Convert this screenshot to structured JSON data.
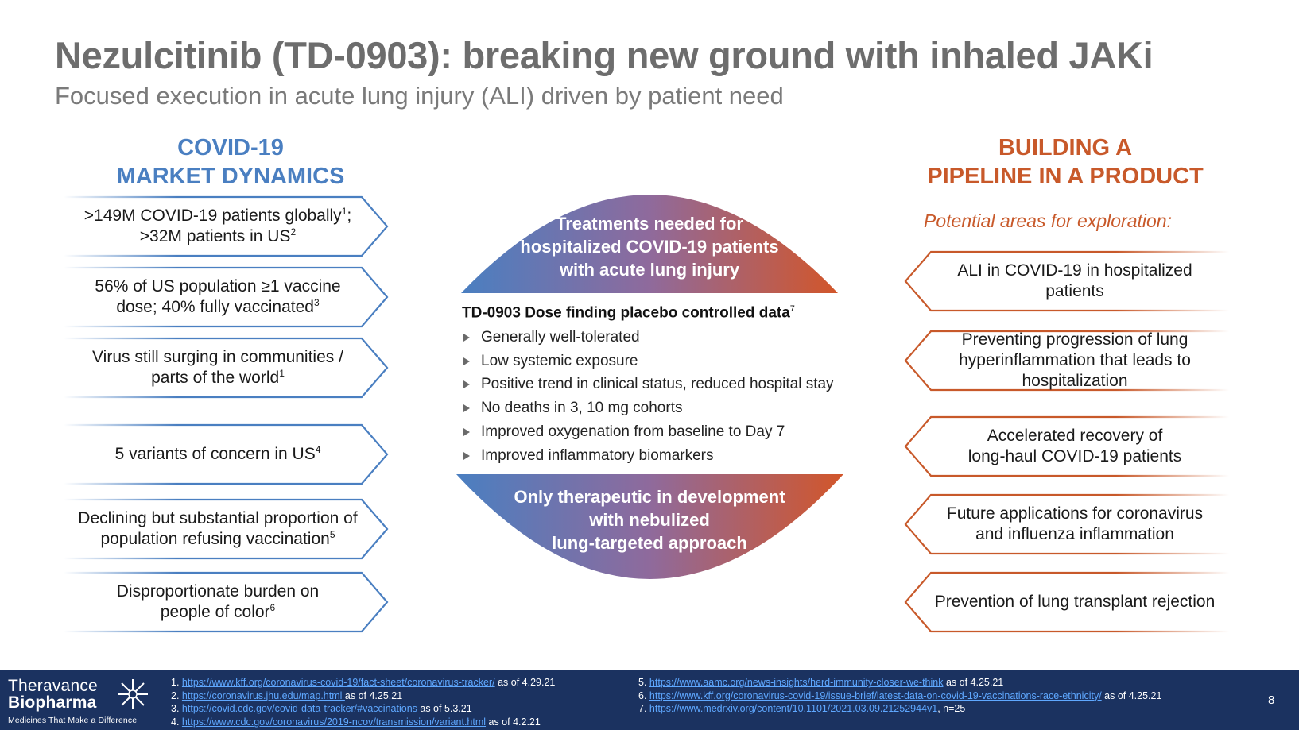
{
  "header": {
    "title": "Nezulcitinib (TD-0903): breaking new ground with inhaled JAKi",
    "subtitle": "Focused execution in acute lung injury (ALI) driven by patient need"
  },
  "left": {
    "heading_line1": "COVID-19",
    "heading_line2": "MARKET DYNAMICS",
    "color": "#4a7fc1",
    "items": [
      {
        "l1": ">149M COVID-19 patients globally",
        "s1": "1",
        "l1b": ";",
        "l2": ">32M patients in US",
        "s2": "2"
      },
      {
        "l1": "56% of US population ≥1 vaccine",
        "l2": "dose; 40% fully vaccinated",
        "s2": "3"
      },
      {
        "l1": "Virus still surging in communities /",
        "l2": "parts of the world",
        "s2": "1"
      },
      {
        "l1": "5 variants of concern in US",
        "s1": "4"
      },
      {
        "l1": "Declining but substantial proportion of",
        "l2": "population refusing vaccination",
        "s2": "5"
      },
      {
        "l1": "Disproportionate burden on",
        "l2": "people of color",
        "s2": "6"
      }
    ]
  },
  "center": {
    "top_dome": [
      "Treatments needed for",
      "hospitalized COVID-19 patients",
      "with acute lung injury"
    ],
    "data_title": "TD-0903 Dose finding placebo controlled data",
    "data_title_sup": "7",
    "bullets": [
      "Generally well-tolerated",
      "Low systemic exposure",
      "Positive trend in clinical status, reduced hospital stay",
      "No deaths in 3, 10 mg cohorts",
      "Improved oxygenation from baseline to Day 7",
      "Improved inflammatory biomarkers"
    ],
    "bottom_dome": [
      "Only therapeutic in development",
      "with nebulized",
      "lung-targeted approach"
    ],
    "gradient_start": "#4a7fc1",
    "gradient_end": "#d2562a"
  },
  "right": {
    "heading_line1": "BUILDING A",
    "heading_line2": "PIPELINE IN A PRODUCT",
    "subheading": "Potential areas for exploration:",
    "color": "#c8592a",
    "items": [
      {
        "l1": "ALI in COVID-19 in hospitalized",
        "l2": "patients"
      },
      {
        "l1": "Preventing progression of lung",
        "l2": "hyperinflammation that leads to",
        "l3": "hospitalization"
      },
      {
        "l1": "Accelerated recovery of",
        "l2": "long-haul COVID-19 patients"
      },
      {
        "l1": "Future applications for coronavirus",
        "l2": "and influenza inflammation"
      },
      {
        "l1": "Prevention of lung transplant rejection"
      }
    ]
  },
  "footer": {
    "logo_line1": "Theravance",
    "logo_line2": "Biopharma",
    "logo_tagline": "Medicines That Make a Difference",
    "page_number": "8",
    "refs_left": [
      {
        "n": "1.",
        "url": "https://www.kff.org/coronavirus-covid-19/fact-sheet/coronavirus-tracker/",
        "tail": " as of 4.29.21"
      },
      {
        "n": "2.",
        "url": "https://coronavirus.jhu.edu/map.html ",
        "tail": "as of 4.25.21"
      },
      {
        "n": "3.",
        "url": "https://covid.cdc.gov/covid-data-tracker/#vaccinations",
        "tail": " as of 5.3.21"
      },
      {
        "n": "4.",
        "url": "https://www.cdc.gov/coronavirus/2019-ncov/transmission/variant.html",
        "tail": " as of 4.2.21"
      }
    ],
    "refs_right": [
      {
        "n": "5.",
        "url": "https://www.aamc.org/news-insights/herd-immunity-closer-we-think",
        "tail": " as of 4.25.21"
      },
      {
        "n": "6.",
        "url": "https://www.kff.org/coronavirus-covid-19/issue-brief/latest-data-on-covid-19-vaccinations-race-ethnicity/",
        "tail": " as of 4.25.21"
      },
      {
        "n": "7.",
        "url": "https://www.medrxiv.org/content/10.1101/2021.03.09.21252944v1",
        "tail": ", n=25"
      }
    ],
    "bg_color": "#1b3260"
  }
}
